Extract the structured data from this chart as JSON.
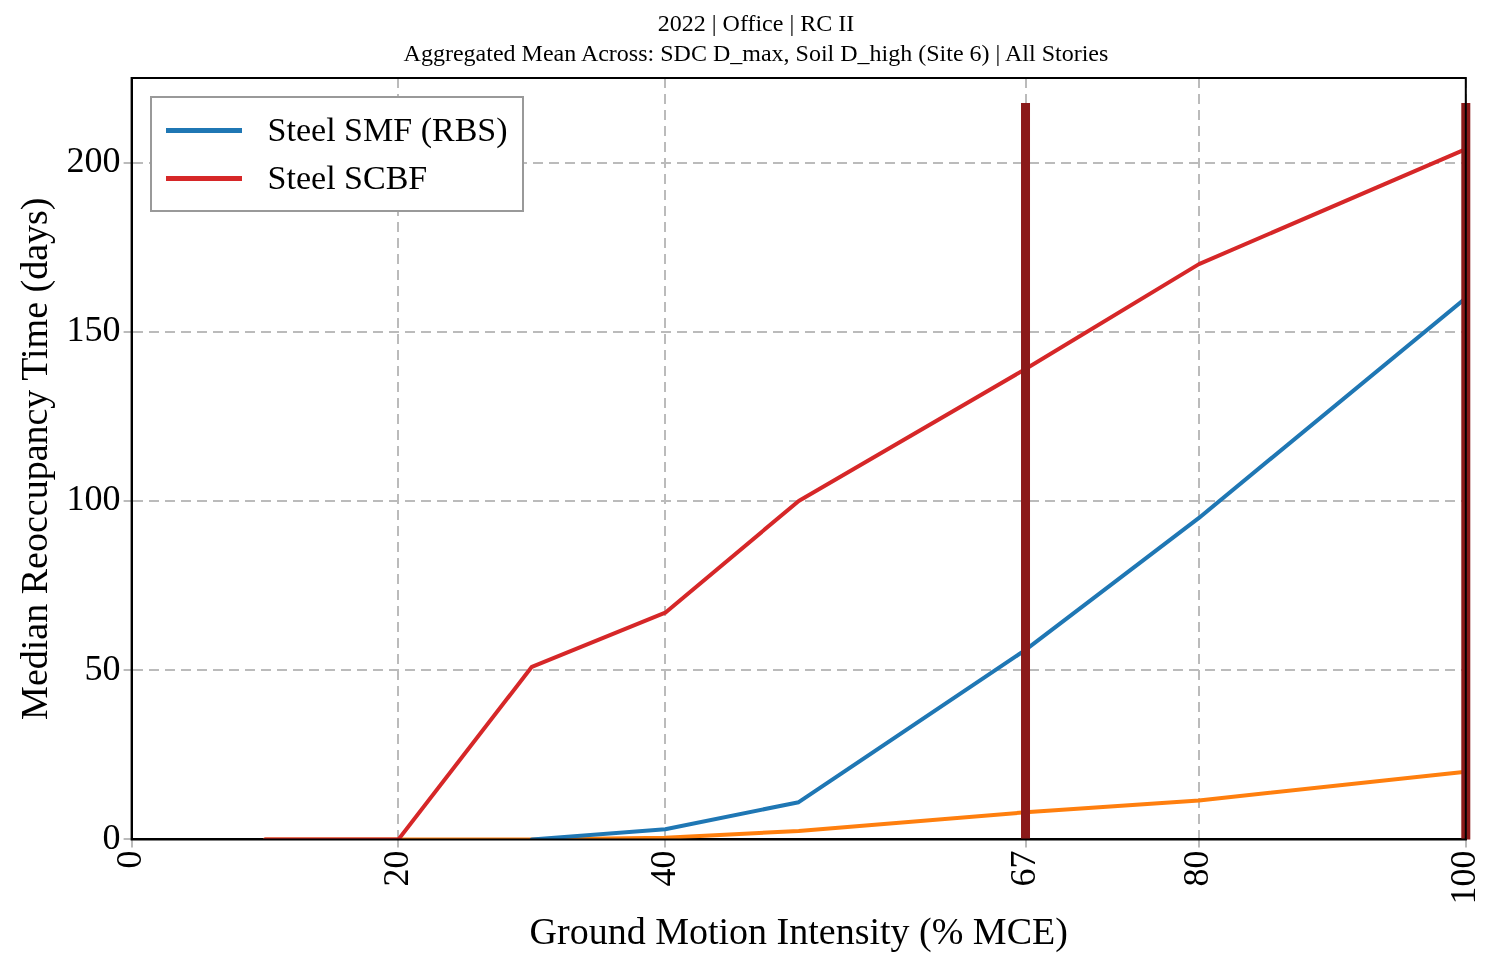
{
  "chart_data": {
    "type": "line",
    "title": "2022 | Office | RC II",
    "subtitle": "Aggregated Mean Across: SDC D_max, Soil D_high (Site 6) | All Stories",
    "xlabel": "Ground Motion Intensity (% MCE)",
    "ylabel": "Median Reoccupancy Time (days)",
    "x": [
      10,
      20,
      30,
      40,
      50,
      67,
      80,
      100
    ],
    "series": [
      {
        "name": "Steel SMF (RBS)",
        "color": "#1f77b4",
        "values": [
          null,
          null,
          0,
          3,
          11,
          56,
          95,
          160
        ]
      },
      {
        "name": "Steel SCBF",
        "color": "#d62728",
        "values": [
          0,
          0,
          51,
          67,
          100,
          139,
          170,
          204
        ]
      },
      {
        "color": "#ff7f0e",
        "values": [
          0,
          0,
          0,
          0.5,
          2.5,
          8,
          11.5,
          20
        ]
      }
    ],
    "xlim": [
      0,
      100
    ],
    "xticks": [
      0,
      20,
      40,
      67,
      80,
      100
    ],
    "ylim": [
      0,
      225
    ],
    "yticks": [
      0,
      50,
      100,
      150,
      200
    ],
    "ref_lines": [
      {
        "axis": "x",
        "value": 67,
        "color": "#8b1a1a"
      },
      {
        "axis": "x",
        "value": 100,
        "color": "#8b1a1a"
      }
    ],
    "grid": true,
    "legend": "top left",
    "marker": "none",
    "line_style": "solid"
  }
}
